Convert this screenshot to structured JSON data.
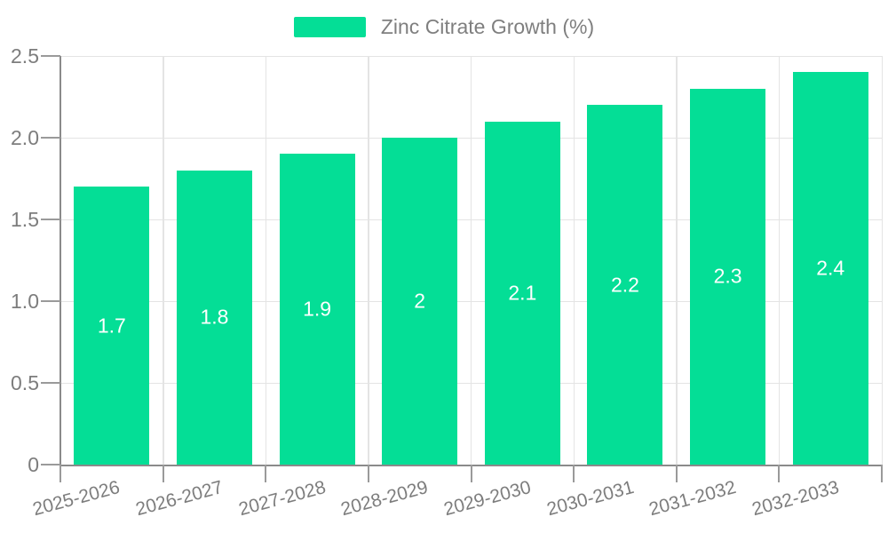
{
  "page": {
    "background": "#ffffff"
  },
  "legend": {
    "label": "Zinc Citrate Growth (%)"
  },
  "chart_data": {
    "type": "bar",
    "title": "",
    "categories": [
      "2025-2026",
      "2026-2027",
      "2027-2028",
      "2028-2029",
      "2029-2030",
      "2030-2031",
      "2031-2032",
      "2032-2033"
    ],
    "series": [
      {
        "name": "Zinc Citrate Growth (%)",
        "values": [
          1.7,
          1.8,
          1.9,
          2,
          2.1,
          2.2,
          2.3,
          2.4
        ]
      }
    ],
    "xlabel": "",
    "ylabel": "",
    "ylim": [
      0,
      2.5
    ],
    "yticks": [
      0,
      0.5,
      1,
      1.5,
      2,
      2.5
    ],
    "ytick_labels": [
      "0",
      "0.5",
      "1.0",
      "1.5",
      "2.0",
      "2.5"
    ],
    "grid": true,
    "legend_position": "top",
    "bar_color": "#04DE96",
    "axis_color": "#8a8a8a",
    "grid_color": "#e4e4e4",
    "tick_label_color": "#7d7d7d",
    "value_label_color": "#ffffff"
  }
}
